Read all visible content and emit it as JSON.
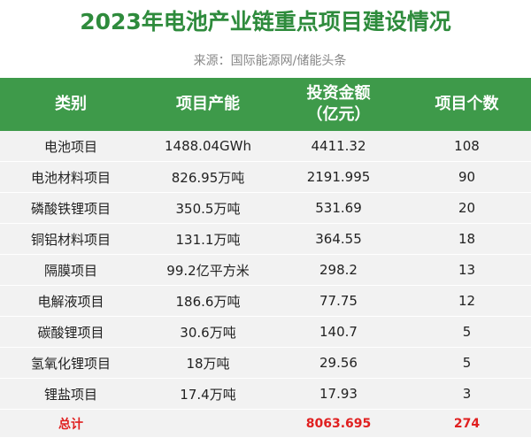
{
  "header": {
    "title": "2023年电池产业链重点项目建设情况",
    "source": "来源：国际能源网/储能头条"
  },
  "table": {
    "columns": [
      "类别",
      "项目产能",
      "投资金额（亿元）",
      "项目个数"
    ],
    "rows": [
      [
        "电池项目",
        "1488.04GWh",
        "4411.32",
        "108"
      ],
      [
        "电池材料项目",
        "826.95万吨",
        "2191.995",
        "90"
      ],
      [
        "磷酸铁锂项目",
        "350.5万吨",
        "531.69",
        "20"
      ],
      [
        "铜铝材料项目",
        "131.1万吨",
        "364.55",
        "18"
      ],
      [
        "隔膜项目",
        "99.2亿平方米",
        "298.2",
        "13"
      ],
      [
        "电解液项目",
        "186.6万吨",
        "77.75",
        "12"
      ],
      [
        "碳酸锂项目",
        "30.6万吨",
        "140.7",
        "5"
      ],
      [
        "氢氧化锂项目",
        "18万吨",
        "29.56",
        "5"
      ],
      [
        "锂盐项目",
        "17.4万吨",
        "17.93",
        "3"
      ]
    ],
    "total": [
      "总计",
      "",
      "8063.695",
      "274"
    ]
  }
}
